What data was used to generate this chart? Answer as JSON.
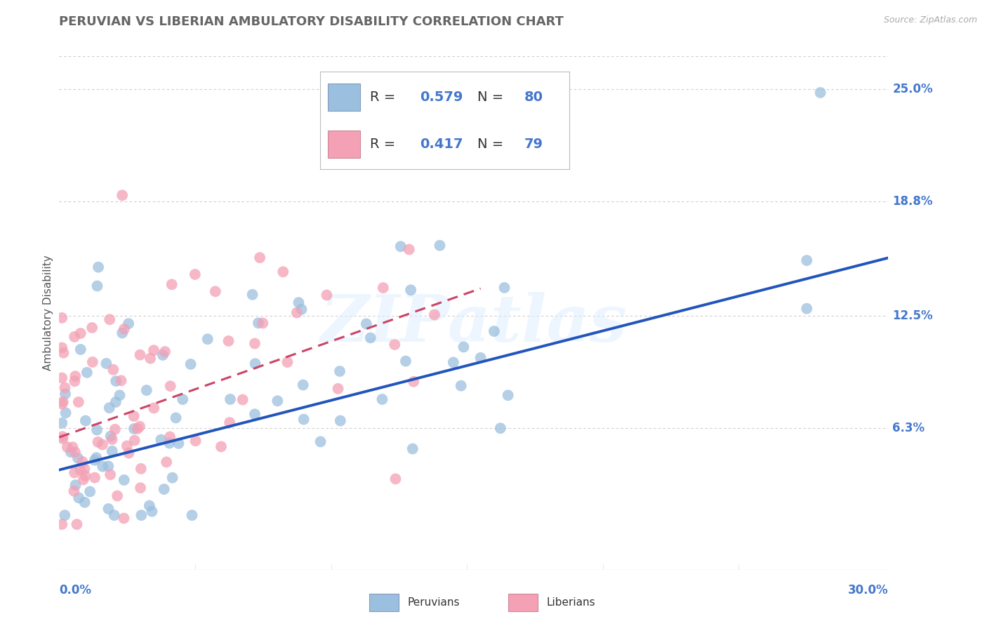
{
  "title": "PERUVIAN VS LIBERIAN AMBULATORY DISABILITY CORRELATION CHART",
  "source": "Source: ZipAtlas.com",
  "ylabel": "Ambulatory Disability",
  "xlim": [
    0.0,
    0.305
  ],
  "ylim": [
    -0.015,
    0.268
  ],
  "right_yticks": [
    0.063,
    0.125,
    0.188,
    0.25
  ],
  "right_ytick_labels": [
    "6.3%",
    "12.5%",
    "18.8%",
    "25.0%"
  ],
  "legend_R1": "0.579",
  "legend_N1": "80",
  "legend_R2": "0.417",
  "legend_N2": "79",
  "color_peruvian": "#9bbfde",
  "color_liberian": "#f4a0b5",
  "color_line_peruvian": "#2255bb",
  "color_line_liberian": "#cc4466",
  "watermark": "ZIPatlas",
  "background_color": "#ffffff",
  "grid_color": "#cccccc",
  "title_color": "#666666",
  "source_color": "#aaaaaa",
  "axis_label_color": "#4477cc",
  "peruvian_line_start_y": 0.04,
  "peruvian_line_end_y": 0.155,
  "liberian_line_start_y": 0.058,
  "liberian_line_end_y": 0.14,
  "liberian_line_x_end": 0.155
}
